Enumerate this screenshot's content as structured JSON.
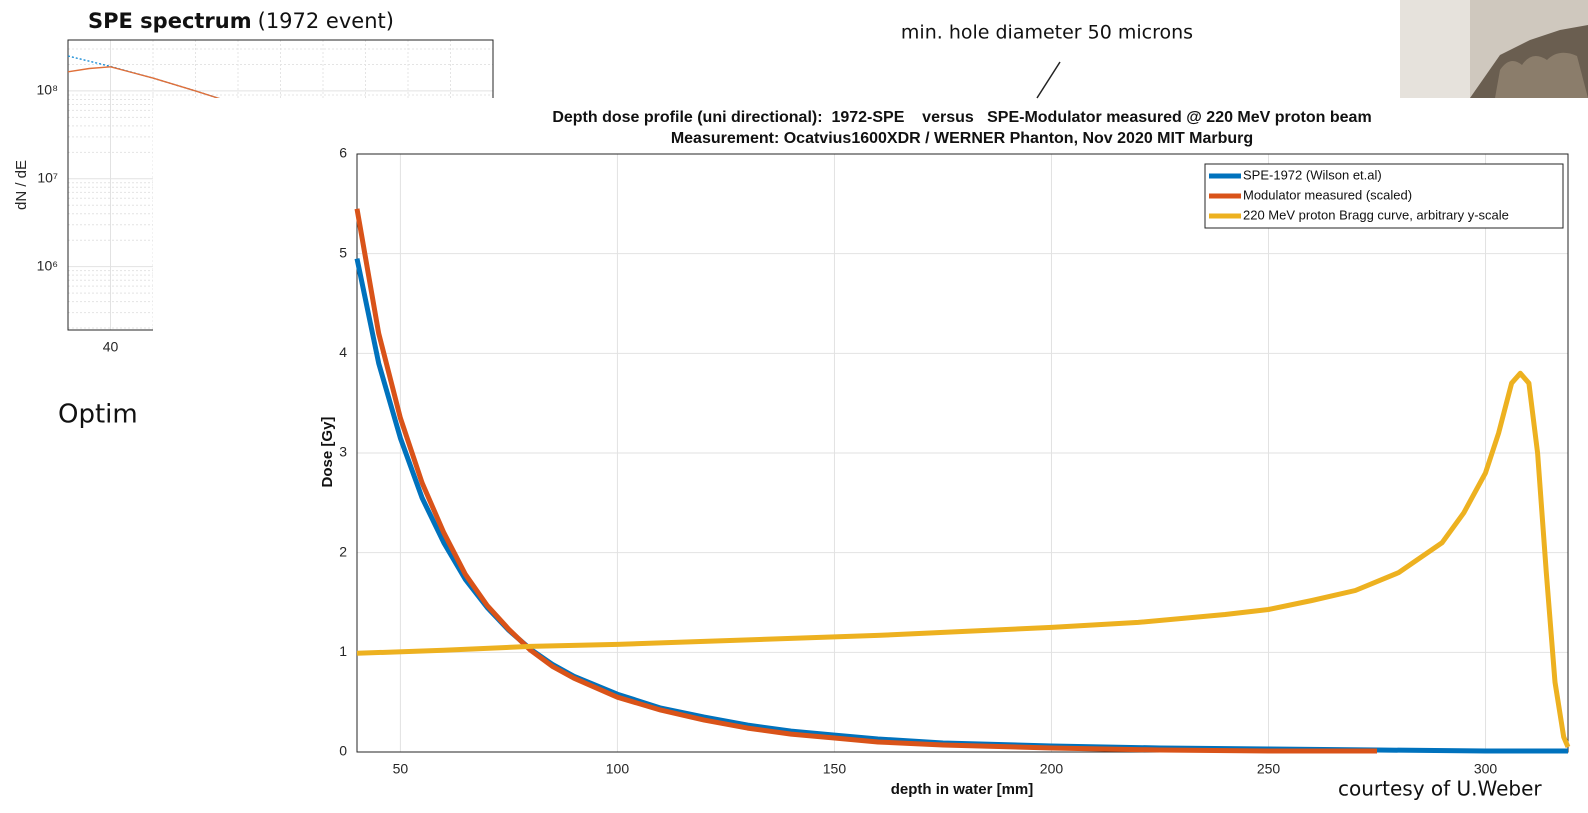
{
  "slide": {
    "annotation": "min. hole diameter 50 microns",
    "clipped_text": "Optim",
    "credit": "courtesy of U.Weber"
  },
  "chart_data": [
    {
      "type": "line",
      "title": "SPE spectrum",
      "subtitle": "(1972 event)",
      "y_label": "dN / dE",
      "log_y": true,
      "grid": true,
      "xlim": [
        30,
        130
      ],
      "xticks": [
        40
      ],
      "ylim": [
        190000,
        380000000
      ],
      "yticks": [
        {
          "value": 1000000,
          "label": "10⁶"
        },
        {
          "value": 10000000,
          "label": "10⁷"
        },
        {
          "value": 100000000,
          "label": "10⁸"
        }
      ],
      "series": [
        {
          "color": "#1f8fd6",
          "style": "dotted",
          "x": [
            30,
            40,
            50,
            60,
            70
          ],
          "values": [
            250000000,
            190000000,
            140000000,
            100000000,
            70000000
          ]
        },
        {
          "color": "#e0703a",
          "style": "solid",
          "x": [
            30,
            35,
            40,
            50,
            60,
            70
          ],
          "values": [
            165000000,
            180000000,
            188000000,
            140000000,
            100000000,
            70000000
          ]
        }
      ]
    },
    {
      "type": "line",
      "title": "Depth dose profile (uni directional):  1972-SPE    versus   SPE-Modulator measured @ 220 MeV proton beam",
      "subtitle": "Measurement: Ocatvius1600XDR / WERNER Phanton, Nov 2020 MIT Marburg",
      "x_label": "depth in water [mm]",
      "y_label": "Dose [Gy]",
      "grid": true,
      "legend": "upper right",
      "xlim": [
        40,
        319
      ],
      "xticks": [
        50,
        100,
        150,
        200,
        250,
        300
      ],
      "ylim": [
        0,
        6
      ],
      "yticks": [
        0,
        1,
        2,
        3,
        4,
        5,
        6
      ],
      "series": [
        {
          "name": "SPE-1972 (Wilson et.al)",
          "color": "#0072bd",
          "x": [
            40,
            45,
            50,
            55,
            60,
            65,
            70,
            75,
            80,
            85,
            90,
            100,
            110,
            120,
            130,
            140,
            150,
            160,
            175,
            200,
            225,
            250,
            275,
            300,
            319
          ],
          "values": [
            4.95,
            3.9,
            3.15,
            2.55,
            2.1,
            1.73,
            1.45,
            1.22,
            1.03,
            0.88,
            0.76,
            0.58,
            0.44,
            0.35,
            0.27,
            0.21,
            0.17,
            0.13,
            0.09,
            0.06,
            0.04,
            0.03,
            0.02,
            0.01,
            0.01
          ]
        },
        {
          "name": "Modulator measured (scaled)",
          "color": "#d95319",
          "x": [
            40,
            45,
            50,
            55,
            60,
            65,
            70,
            75,
            80,
            85,
            90,
            100,
            110,
            120,
            130,
            140,
            150,
            160,
            175,
            200,
            225,
            250,
            275
          ],
          "values": [
            5.45,
            4.2,
            3.35,
            2.7,
            2.2,
            1.78,
            1.47,
            1.23,
            1.02,
            0.86,
            0.74,
            0.55,
            0.42,
            0.32,
            0.24,
            0.18,
            0.14,
            0.1,
            0.07,
            0.04,
            0.02,
            0.01,
            0.01
          ]
        },
        {
          "name": "220 MeV proton Bragg curve, arbitrary y-scale",
          "color": "#edb120",
          "x": [
            40,
            60,
            80,
            100,
            120,
            140,
            160,
            180,
            200,
            220,
            240,
            250,
            260,
            270,
            280,
            290,
            295,
            300,
            303,
            306,
            308,
            310,
            312,
            314,
            316,
            318,
            319
          ],
          "values": [
            0.99,
            1.02,
            1.06,
            1.08,
            1.11,
            1.14,
            1.17,
            1.21,
            1.25,
            1.3,
            1.38,
            1.43,
            1.52,
            1.62,
            1.8,
            2.1,
            2.4,
            2.8,
            3.2,
            3.7,
            3.8,
            3.7,
            3.0,
            1.8,
            0.7,
            0.15,
            0.05
          ]
        }
      ]
    }
  ]
}
